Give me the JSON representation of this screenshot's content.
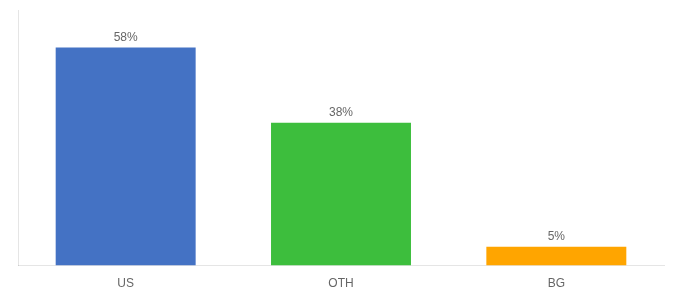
{
  "chart_data": {
    "type": "bar",
    "categories": [
      "US",
      "OTH",
      "BG"
    ],
    "values": [
      58,
      38,
      5
    ],
    "value_labels": [
      "58%",
      "38%",
      "5%"
    ],
    "colors": [
      "#4472C4",
      "#3DBE3D",
      "#FFA500"
    ],
    "ylim": [
      0,
      68
    ],
    "data_labels": true,
    "tick_labels": "x",
    "grid": false
  }
}
